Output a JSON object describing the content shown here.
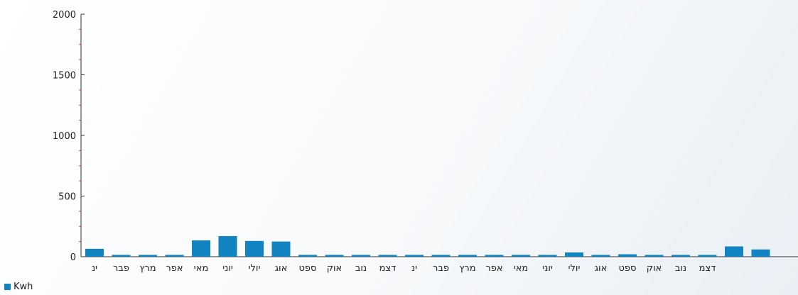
{
  "chart_data": {
    "type": "bar",
    "series": [
      {
        "name": "Kwh",
        "values": [
          65,
          15,
          15,
          15,
          135,
          170,
          130,
          125,
          15,
          15,
          15,
          15,
          15,
          15,
          15,
          15,
          15,
          15,
          35,
          15,
          20,
          15,
          15,
          15,
          85,
          60
        ]
      }
    ],
    "categories": [
      "ינ",
      "פבר",
      "מרץ",
      "אפר",
      "מאי",
      "יוני",
      "יולי",
      "אוג",
      "ספט",
      "אוק",
      "נוב",
      "דצמ",
      "ינ",
      "פבר",
      "מרץ",
      "אפר",
      "מאי",
      "יוני",
      "יולי",
      "אוג",
      "ספט",
      "אוק",
      "נוב",
      "דצמ",
      "",
      ""
    ],
    "ylim": [
      0,
      2000
    ],
    "yticks": [
      0,
      500,
      1000,
      1500,
      2000
    ],
    "grid": false,
    "legend_position": "bottom-left",
    "colors": {
      "bar": "#1183c0",
      "axis": "#333333",
      "minor_tick": "#e04040"
    }
  }
}
